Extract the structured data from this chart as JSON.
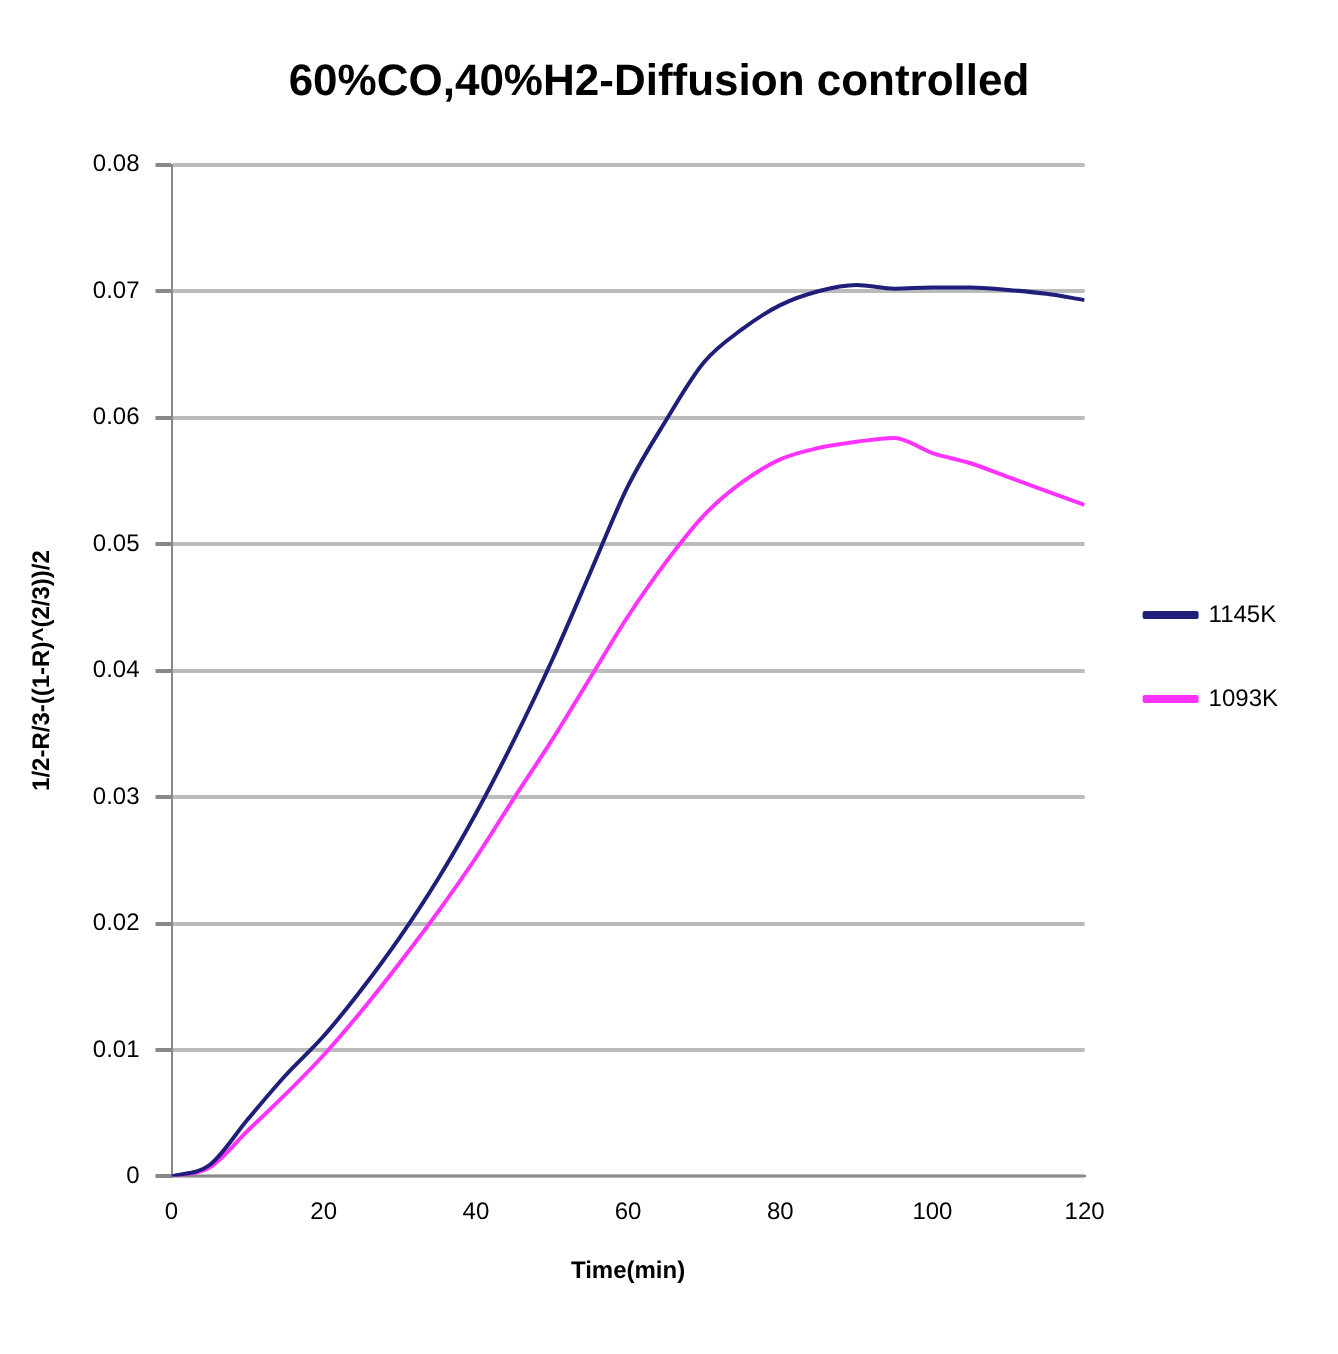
{
  "chart_data": {
    "type": "line",
    "title": "60%CO,40%H2-Diffusion controlled",
    "xlabel": "Time(min)",
    "ylabel": "1/2-R/3-((1-R)^(2/3))/2",
    "x": [
      0,
      5,
      10,
      15,
      20,
      25,
      30,
      35,
      40,
      45,
      50,
      55,
      60,
      65,
      70,
      75,
      80,
      85,
      90,
      95,
      100,
      105,
      110,
      115,
      120
    ],
    "series": [
      {
        "name": "1145K",
        "color": "#1f1f7a",
        "values": [
          0,
          0.0009,
          0.0045,
          0.008,
          0.0111,
          0.0148,
          0.0189,
          0.0235,
          0.0287,
          0.0345,
          0.0408,
          0.0477,
          0.0546,
          0.0598,
          0.0644,
          0.067,
          0.0689,
          0.07,
          0.0705,
          0.0702,
          0.0703,
          0.0703,
          0.0701,
          0.0698,
          0.0693
        ]
      },
      {
        "name": "1093K",
        "color": "#ff33ff",
        "values": [
          0,
          0.0007,
          0.0036,
          0.0065,
          0.0096,
          0.0131,
          0.0169,
          0.0209,
          0.0252,
          0.0299,
          0.0345,
          0.0394,
          0.0443,
          0.0486,
          0.0523,
          0.0549,
          0.0567,
          0.0576,
          0.0581,
          0.0584,
          0.0572,
          0.0564,
          0.0553,
          0.0542,
          0.0531
        ]
      }
    ],
    "xlim": [
      0,
      120
    ],
    "xticks": [
      0,
      20,
      40,
      60,
      80,
      100,
      120
    ],
    "ylim": [
      0,
      0.08
    ],
    "yticks": [
      0,
      0.01,
      0.02,
      0.03,
      0.04,
      0.05,
      0.06,
      0.07,
      0.08
    ],
    "grid": "y",
    "legend": "right",
    "marker": "none",
    "line_style": "solid"
  }
}
